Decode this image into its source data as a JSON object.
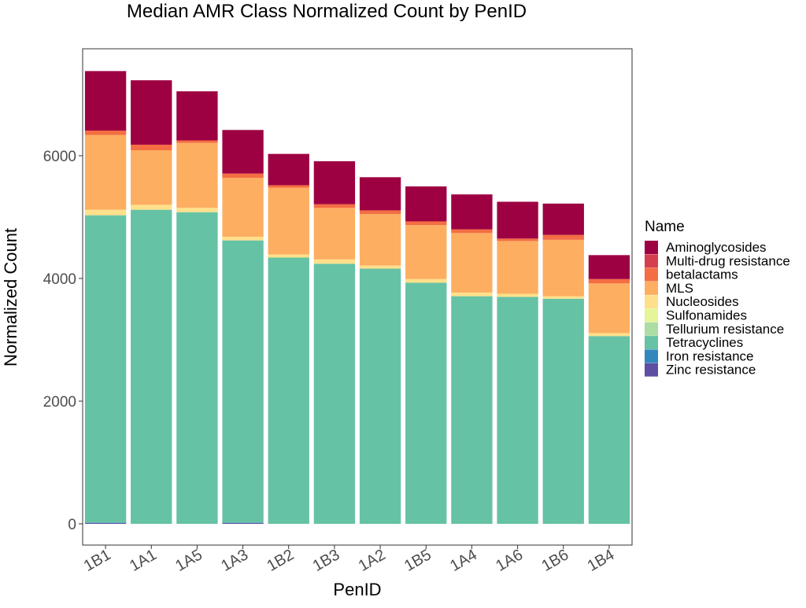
{
  "chart_data": {
    "type": "bar",
    "stacked": true,
    "title": "Median AMR Class Normalized Count by PenID",
    "xlabel": "PenID",
    "ylabel": "Normalized Count",
    "ylim": [
      -150,
      7700
    ],
    "yticks": [
      0,
      2000,
      4000,
      6000
    ],
    "ytick_labels": [
      "0",
      "2000",
      "4000",
      "6000"
    ],
    "grid": false,
    "legend": {
      "title": "Name",
      "position": "right"
    },
    "categories": [
      "1B1",
      "1A1",
      "1A5",
      "1A3",
      "1B2",
      "1B3",
      "1A2",
      "1B5",
      "1A4",
      "1A6",
      "1B6",
      "1B4"
    ],
    "series": [
      {
        "name": "Zinc resistance",
        "color": "#5E4FA2",
        "values": [
          15,
          0,
          0,
          15,
          0,
          0,
          0,
          0,
          0,
          0,
          0,
          0
        ]
      },
      {
        "name": "Iron resistance",
        "color": "#3288BD",
        "values": [
          5,
          0,
          0,
          5,
          0,
          0,
          0,
          0,
          0,
          0,
          0,
          0
        ]
      },
      {
        "name": "Tetracyclines",
        "color": "#66C2A5",
        "values": [
          5010,
          5120,
          5080,
          4600,
          4340,
          4240,
          4160,
          3930,
          3710,
          3700,
          3670,
          3060
        ]
      },
      {
        "name": "Tellurium resistance",
        "color": "#ABDDA4",
        "values": [
          0,
          0,
          0,
          0,
          0,
          0,
          0,
          0,
          0,
          0,
          0,
          0
        ]
      },
      {
        "name": "Sulfonamides",
        "color": "#E6F598",
        "values": [
          0,
          0,
          0,
          0,
          0,
          0,
          0,
          0,
          0,
          0,
          0,
          0
        ]
      },
      {
        "name": "Nucleosides",
        "color": "#FEE08B",
        "values": [
          90,
          80,
          70,
          60,
          50,
          70,
          50,
          60,
          60,
          50,
          40,
          50
        ]
      },
      {
        "name": "MLS",
        "color": "#FDAE61",
        "values": [
          1220,
          890,
          1060,
          960,
          1090,
          840,
          840,
          880,
          970,
          860,
          920,
          810
        ]
      },
      {
        "name": "betalactams",
        "color": "#F46D43",
        "values": [
          70,
          90,
          40,
          70,
          40,
          60,
          60,
          60,
          60,
          40,
          80,
          70
        ]
      },
      {
        "name": "Multi-drug resistance",
        "color": "#D53E4F",
        "values": [
          0,
          0,
          0,
          0,
          0,
          0,
          0,
          0,
          0,
          0,
          0,
          0
        ]
      },
      {
        "name": "Aminoglycosides",
        "color": "#9E0142",
        "values": [
          970,
          1050,
          800,
          710,
          510,
          700,
          540,
          570,
          570,
          600,
          510,
          390
        ]
      }
    ],
    "legend_order": [
      "Aminoglycosides",
      "Multi-drug resistance",
      "betalactams",
      "MLS",
      "Nucleosides",
      "Sulfonamides",
      "Tellurium resistance",
      "Tetracyclines",
      "Iron resistance",
      "Zinc resistance"
    ]
  }
}
